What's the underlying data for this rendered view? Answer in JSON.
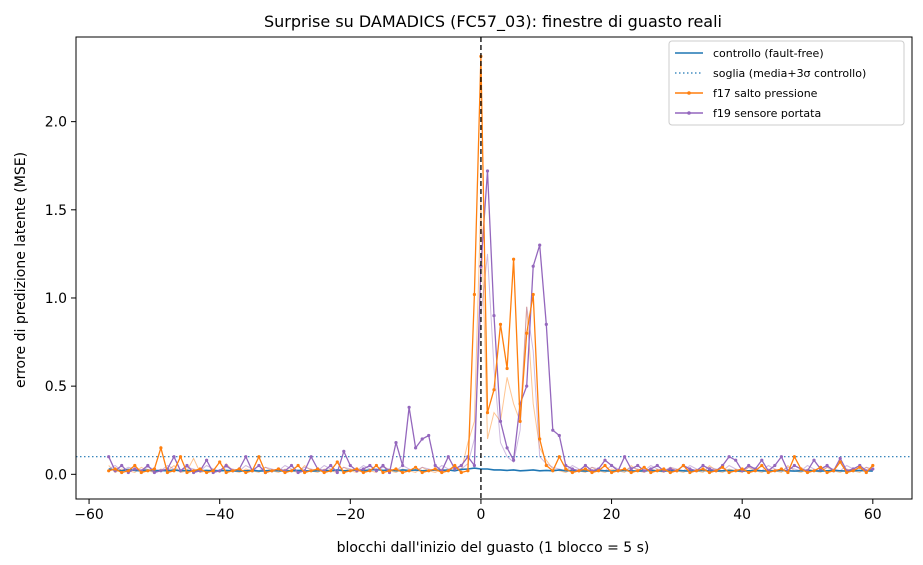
{
  "chart_data": {
    "type": "line",
    "title": "Surprise su DAMADICS (FC57_03): finestre di guasto reali",
    "xlabel": "blocchi dall'inizio del guasto (1 blocco = 5 s)",
    "ylabel": "errore di predizione latente (MSE)",
    "xlim": [
      -62,
      66
    ],
    "ylim": [
      -0.14,
      2.48
    ],
    "x_ticks": [
      -60,
      -40,
      -20,
      0,
      20,
      40,
      60
    ],
    "y_ticks": [
      0.0,
      0.5,
      1.0,
      1.5,
      2.0
    ],
    "x_tick_labels": [
      "−60",
      "−40",
      "−20",
      "0",
      "20",
      "40",
      "60"
    ],
    "y_tick_labels": [
      "0.0",
      "0.5",
      "1.0",
      "1.5",
      "2.0"
    ],
    "grid": false,
    "legend_position": "top-right",
    "fault_onset_x": 0,
    "colors": {
      "control": "#1f77b4",
      "threshold": "#1f77b4",
      "f17": "#ff7f0e",
      "f19": "#9467bd",
      "onset": "#000000"
    },
    "threshold": {
      "name": "soglia (media+3σ controllo)",
      "value": 0.1
    },
    "control": {
      "name": "controllo (fault-free)",
      "x_start": -57,
      "values": [
        0.03,
        0.025,
        0.02,
        0.028,
        0.022,
        0.02,
        0.025,
        0.018,
        0.022,
        0.02,
        0.025,
        0.02,
        0.022,
        0.018,
        0.02,
        0.022,
        0.018,
        0.02,
        0.022,
        0.02,
        0.018,
        0.02,
        0.022,
        0.018,
        0.02,
        0.022,
        0.02,
        0.018,
        0.02,
        0.022,
        0.02,
        0.018,
        0.02,
        0.022,
        0.02,
        0.025,
        0.02,
        0.022,
        0.025,
        0.02,
        0.025,
        0.028,
        0.022,
        0.025,
        0.02,
        0.025,
        0.022,
        0.025,
        0.02,
        0.022,
        0.025,
        0.022,
        0.025,
        0.02,
        0.028,
        0.03,
        0.035,
        0.03,
        0.03,
        0.025,
        0.025,
        0.022,
        0.025,
        0.02,
        0.022,
        0.025,
        0.02,
        0.022,
        0.02,
        0.025,
        0.02,
        0.022,
        0.02,
        0.018,
        0.02,
        0.022,
        0.02,
        0.018,
        0.02,
        0.022,
        0.02,
        0.018,
        0.02,
        0.022,
        0.02,
        0.018,
        0.02,
        0.022,
        0.02,
        0.018,
        0.02,
        0.022,
        0.02,
        0.018,
        0.02,
        0.022,
        0.02,
        0.018,
        0.02,
        0.022,
        0.02,
        0.018,
        0.02,
        0.022,
        0.02,
        0.018,
        0.02,
        0.022,
        0.02,
        0.018,
        0.02,
        0.022,
        0.02,
        0.018,
        0.02,
        0.022,
        0.02,
        0.018
      ]
    },
    "series": [
      {
        "name": "f17 salto pressione",
        "x_start": -57,
        "values": [
          0.02,
          0.03,
          0.01,
          0.02,
          0.05,
          0.01,
          0.02,
          0.03,
          0.15,
          0.01,
          0.02,
          0.1,
          0.01,
          0.02,
          0.03,
          0.01,
          0.02,
          0.07,
          0.01,
          0.02,
          0.03,
          0.01,
          0.02,
          0.1,
          0.01,
          0.02,
          0.03,
          0.01,
          0.02,
          0.05,
          0.01,
          0.02,
          0.03,
          0.01,
          0.02,
          0.07,
          0.01,
          0.02,
          0.03,
          0.01,
          0.02,
          0.05,
          0.01,
          0.02,
          0.03,
          0.01,
          0.02,
          0.04,
          0.01,
          0.02,
          0.03,
          0.01,
          0.02,
          0.05,
          0.01,
          0.02,
          1.02,
          2.37,
          0.35,
          0.48,
          0.85,
          0.6,
          1.22,
          0.3,
          0.8,
          1.02,
          0.2,
          0.05,
          0.02,
          0.1,
          0.03,
          0.01,
          0.02,
          0.03,
          0.01,
          0.02,
          0.05,
          0.01,
          0.02,
          0.03,
          0.01,
          0.02,
          0.04,
          0.01,
          0.02,
          0.03,
          0.01,
          0.02,
          0.05,
          0.01,
          0.02,
          0.03,
          0.01,
          0.02,
          0.04,
          0.01,
          0.02,
          0.03,
          0.01,
          0.02,
          0.05,
          0.01,
          0.02,
          0.03,
          0.01,
          0.1,
          0.03,
          0.01,
          0.02,
          0.04,
          0.01,
          0.02,
          0.07,
          0.01,
          0.02,
          0.04,
          0.01,
          0.05
        ]
      },
      {
        "name": "f19 sensore portata",
        "x_start": -57,
        "values": [
          0.1,
          0.02,
          0.05,
          0.01,
          0.03,
          0.02,
          0.05,
          0.01,
          0.02,
          0.03,
          0.1,
          0.02,
          0.05,
          0.01,
          0.02,
          0.08,
          0.01,
          0.02,
          0.05,
          0.02,
          0.03,
          0.1,
          0.02,
          0.05,
          0.01,
          0.02,
          0.03,
          0.02,
          0.05,
          0.01,
          0.02,
          0.1,
          0.03,
          0.02,
          0.05,
          0.01,
          0.13,
          0.05,
          0.02,
          0.03,
          0.05,
          0.02,
          0.05,
          0.01,
          0.18,
          0.05,
          0.38,
          0.15,
          0.2,
          0.22,
          0.05,
          0.02,
          0.1,
          0.03,
          0.05,
          0.1,
          0.05,
          1.18,
          1.72,
          0.9,
          0.3,
          0.15,
          0.08,
          0.4,
          0.5,
          1.18,
          1.3,
          0.85,
          0.25,
          0.22,
          0.05,
          0.03,
          0.02,
          0.05,
          0.02,
          0.03,
          0.08,
          0.05,
          0.02,
          0.1,
          0.03,
          0.05,
          0.02,
          0.03,
          0.05,
          0.02,
          0.03,
          0.02,
          0.05,
          0.03,
          0.02,
          0.05,
          0.03,
          0.02,
          0.05,
          0.1,
          0.08,
          0.02,
          0.05,
          0.03,
          0.08,
          0.02,
          0.05,
          0.1,
          0.02,
          0.05,
          0.03,
          0.02,
          0.08,
          0.03,
          0.05,
          0.02,
          0.09,
          0.02,
          0.03,
          0.05,
          0.02,
          0.03
        ]
      }
    ],
    "background_traces": [
      {
        "color": "#ff7f0e",
        "x_start": -57,
        "values": [
          0.05,
          0.01,
          0.03,
          0.02,
          0.01,
          0.04,
          0.02,
          0.01,
          0.03,
          0.02,
          0.05,
          0.01,
          0.02,
          0.09,
          0.01,
          0.02,
          0.03,
          0.01,
          0.06,
          0.02,
          0.01,
          0.03,
          0.02,
          0.01,
          0.04,
          0.02,
          0.01,
          0.03,
          0.02,
          0.01,
          0.05,
          0.02,
          0.01,
          0.03,
          0.02,
          0.01,
          0.04,
          0.02,
          0.01,
          0.03,
          0.02,
          0.01,
          0.05,
          0.02,
          0.01,
          0.03,
          0.02,
          0.01,
          0.04,
          0.02,
          0.01,
          0.03,
          0.02,
          0.04,
          0.02,
          0.18,
          0.3,
          1.55,
          0.2,
          0.35,
          0.3,
          0.55,
          0.4,
          0.3,
          0.95,
          0.4,
          0.15,
          0.08,
          0.03,
          0.02,
          0.01,
          0.03,
          0.02,
          0.01,
          0.04,
          0.02,
          0.01,
          0.03,
          0.02,
          0.01,
          0.05,
          0.02,
          0.01,
          0.03,
          0.02,
          0.01,
          0.04,
          0.02,
          0.01,
          0.03,
          0.02,
          0.01,
          0.05,
          0.02,
          0.01,
          0.03,
          0.02,
          0.01,
          0.04,
          0.02,
          0.01,
          0.03,
          0.02,
          0.01,
          0.05,
          0.02,
          0.01,
          0.03,
          0.02,
          0.01,
          0.04,
          0.02,
          0.01,
          0.03,
          0.02,
          0.01,
          0.04,
          0.02
        ]
      },
      {
        "color": "#9467bd",
        "x_start": -57,
        "values": [
          0.03,
          0.05,
          0.02,
          0.04,
          0.03,
          0.02,
          0.04,
          0.03,
          0.02,
          0.05,
          0.03,
          0.02,
          0.04,
          0.03,
          0.02,
          0.05,
          0.03,
          0.02,
          0.04,
          0.03,
          0.02,
          0.05,
          0.03,
          0.02,
          0.04,
          0.03,
          0.02,
          0.05,
          0.03,
          0.02,
          0.04,
          0.03,
          0.02,
          0.05,
          0.03,
          0.02,
          0.04,
          0.03,
          0.02,
          0.05,
          0.03,
          0.02,
          0.04,
          0.03,
          0.02,
          0.05,
          0.03,
          0.02,
          0.04,
          0.03,
          0.02,
          0.05,
          0.03,
          0.04,
          0.03,
          0.06,
          0.2,
          0.9,
          1.25,
          0.6,
          0.18,
          0.1,
          0.07,
          0.25,
          0.95,
          0.7,
          0.1,
          0.06,
          0.04,
          0.03,
          0.02,
          0.05,
          0.03,
          0.02,
          0.04,
          0.03,
          0.02,
          0.05,
          0.03,
          0.02,
          0.04,
          0.03,
          0.02,
          0.05,
          0.03,
          0.02,
          0.04,
          0.03,
          0.02,
          0.05,
          0.03,
          0.02,
          0.04,
          0.03,
          0.02,
          0.05,
          0.03,
          0.02,
          0.04,
          0.03,
          0.02,
          0.05,
          0.03,
          0.02,
          0.04,
          0.03,
          0.02,
          0.05,
          0.03,
          0.02,
          0.04,
          0.03,
          0.02,
          0.05,
          0.03,
          0.02,
          0.04,
          0.03
        ]
      }
    ]
  }
}
